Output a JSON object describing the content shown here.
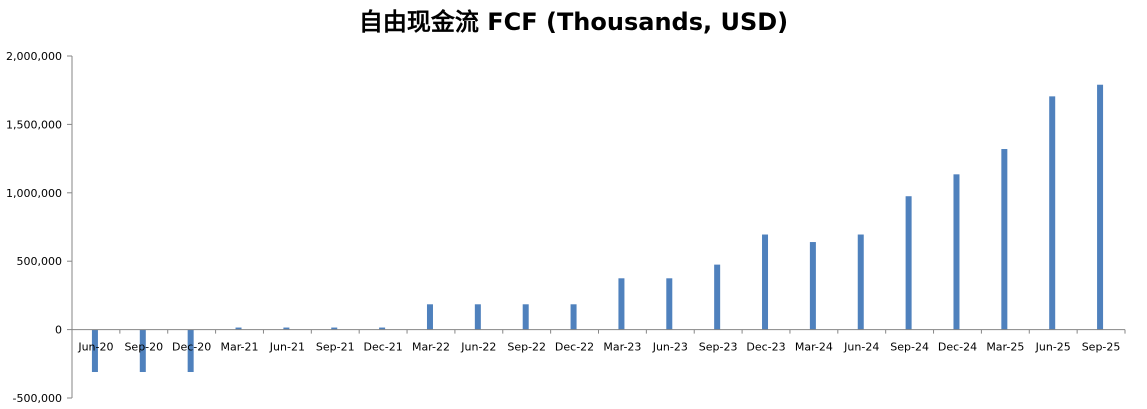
{
  "chart_data": {
    "type": "bar",
    "title": "自由现金流 FCF (Thousands, USD)",
    "xlabel": "",
    "ylabel": "",
    "ylim": [
      -500000,
      2000000
    ],
    "yticks": [
      2000000,
      1500000,
      1000000,
      500000,
      0,
      -500000
    ],
    "ytick_labels": [
      "2,000,000",
      "1,500,000",
      "1,000,000",
      "500,000",
      "0",
      "-500,000"
    ],
    "grid": false,
    "legend": "none",
    "bar_color": "#4f81bd",
    "axis_color": "#868686",
    "categories": [
      "Jun-20",
      "Sep-20",
      "Dec-20",
      "Mar-21",
      "Jun-21",
      "Sep-21",
      "Dec-21",
      "Mar-22",
      "Jun-22",
      "Sep-22",
      "Dec-22",
      "Mar-23",
      "Jun-23",
      "Sep-23",
      "Dec-23",
      "Mar-24",
      "Jun-24",
      "Sep-24",
      "Dec-24",
      "Mar-25",
      "Jun-25",
      "Sep-25"
    ],
    "values": [
      -310000,
      -310000,
      -310000,
      15000,
      15000,
      15000,
      15000,
      185000,
      185000,
      185000,
      185000,
      375000,
      375000,
      475000,
      695000,
      640000,
      695000,
      975000,
      1135000,
      1320000,
      1705000,
      1790000
    ]
  }
}
